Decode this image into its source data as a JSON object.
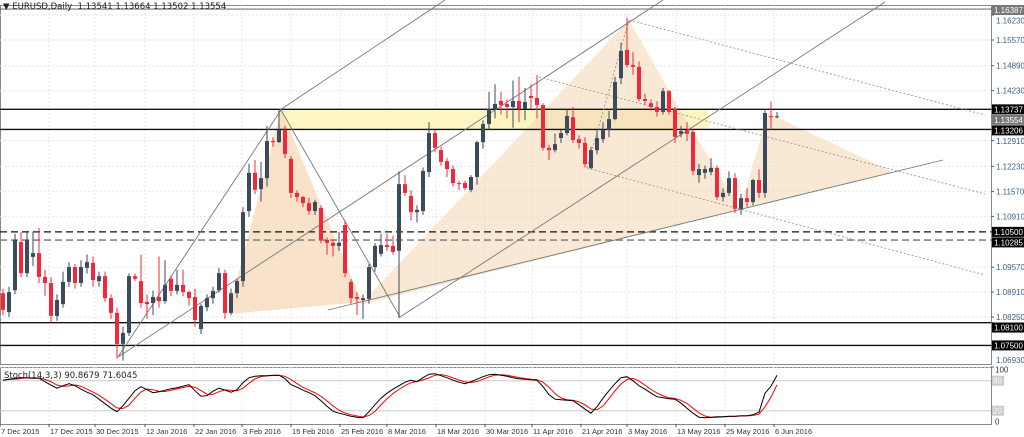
{
  "header": {
    "symbol": "EURUSD,Daily",
    "ohlc": "1.13541 1.13664 1.13502 1.13554",
    "menu_icon": "triangle-down-icon"
  },
  "stochastic": {
    "label": "Stoch(14,3,3) 90.8679 71.6045",
    "levels": [
      100,
      80,
      20,
      0
    ],
    "colors": {
      "main": "#000000",
      "signal": "#ff0000"
    },
    "main": [
      81,
      83,
      85,
      86,
      86,
      85,
      85,
      78,
      71,
      65,
      70,
      74,
      70,
      63,
      57,
      52,
      43,
      34,
      25,
      18,
      30,
      45,
      60,
      68,
      62,
      56,
      58,
      61,
      64,
      66,
      69,
      72,
      60,
      49,
      50,
      59,
      65,
      61,
      57,
      62,
      76,
      86,
      89,
      90,
      90,
      91,
      91,
      84,
      72,
      67,
      61,
      56,
      50,
      40,
      29,
      19,
      15,
      12,
      9,
      7,
      6,
      18,
      32,
      45,
      55,
      63,
      70,
      77,
      81,
      78,
      86,
      93,
      94,
      90,
      86,
      81,
      77,
      74,
      78,
      83,
      88,
      92,
      93,
      91,
      89,
      86,
      84,
      83,
      82,
      81,
      68,
      52,
      43,
      42,
      41,
      40,
      32,
      23,
      15,
      28,
      45,
      60,
      74,
      86,
      88,
      80,
      70,
      63,
      55,
      48,
      46,
      44,
      43,
      35,
      25,
      15,
      7,
      6,
      7,
      8,
      8,
      9,
      9,
      10,
      10,
      12,
      17,
      55,
      69,
      90.87
    ]
  },
  "chart_data": {
    "type": "candlestick",
    "symbol": "EURUSD",
    "timeframe": "Daily",
    "colors": {
      "bull": "#3d4a5c",
      "bear": "#f0293a",
      "zone": "#fdf6c3",
      "pattern": "#f5d9b8"
    },
    "ylim": [
      1.066,
      1.166
    ],
    "price_ticks": [
      "1.16230",
      "1.15570",
      "1.14890",
      "1.14230",
      "1.12910",
      "1.12230",
      "1.11570",
      "1.10910",
      "1.09570",
      "1.08910",
      "1.08250",
      "1.06930"
    ],
    "price_labels": [
      {
        "value": "1.16387",
        "style": "gray"
      },
      {
        "value": "1.13737",
        "style": "black"
      },
      {
        "value": "1.13554",
        "style": "gray"
      },
      {
        "value": "1.13206",
        "style": "black"
      },
      {
        "value": "1.10500",
        "style": "black"
      },
      {
        "value": "1.10285",
        "style": "black"
      },
      {
        "value": "1.08100",
        "style": "black"
      },
      {
        "value": "1.07500",
        "style": "black"
      }
    ],
    "levels": [
      {
        "price": 1.16387,
        "style": "solid-gray"
      },
      {
        "price": 1.13737,
        "style": "solid"
      },
      {
        "price": 1.13206,
        "style": "solid"
      },
      {
        "price": 1.105,
        "style": "dash-black"
      },
      {
        "price": 1.10285,
        "style": "dash-gray"
      },
      {
        "price": 1.081,
        "style": "solid"
      },
      {
        "price": 1.075,
        "style": "solid"
      }
    ],
    "date_labels": [
      "7 Dec 2015",
      "17 Dec 2015",
      "30 Dec 2015",
      "12 Jan 2016",
      "22 Jan 2016",
      "3 Feb 2016",
      "15 Feb 2016",
      "25 Feb 2016",
      "8 Mar 2016",
      "18 Mar 2016",
      "30 Mar 2016",
      "11 Apr 2016",
      "21 Apr 2016",
      "3 May 2016",
      "13 May 2016",
      "25 May 2016",
      "6 Jun 2016"
    ],
    "ohlc": [
      [
        1.0888,
        1.09,
        1.083,
        1.0844
      ],
      [
        1.0838,
        1.0905,
        1.0825,
        1.0891
      ],
      [
        1.0896,
        1.1045,
        1.0885,
        1.1029
      ],
      [
        1.1023,
        1.105,
        1.093,
        1.0941
      ],
      [
        1.0941,
        1.105,
        1.093,
        1.1029
      ],
      [
        1.0984,
        1.105,
        1.096,
        1.0994
      ],
      [
        1.0994,
        1.106,
        1.0915,
        1.0931
      ],
      [
        1.0931,
        1.095,
        1.088,
        1.0915
      ],
      [
        1.0915,
        1.093,
        1.081,
        1.0828
      ],
      [
        1.0828,
        1.0885,
        1.0815,
        1.087
      ],
      [
        1.0859,
        1.0945,
        1.085,
        1.0918
      ],
      [
        1.0918,
        1.097,
        1.0905,
        1.0957
      ],
      [
        1.0957,
        1.0965,
        1.09,
        1.0915
      ],
      [
        1.0915,
        1.0975,
        1.0905,
        1.0957
      ],
      [
        1.0955,
        1.099,
        1.094,
        1.097
      ],
      [
        1.0968,
        1.0985,
        1.0905,
        1.0923
      ],
      [
        1.092,
        1.0945,
        1.0905,
        1.0933
      ],
      [
        1.0933,
        1.0945,
        1.0865,
        1.0875
      ],
      [
        1.0875,
        1.0885,
        1.082,
        1.0836
      ],
      [
        1.0836,
        1.085,
        1.0715,
        1.0754
      ],
      [
        1.0754,
        1.08,
        1.071,
        1.0783
      ],
      [
        1.0783,
        1.094,
        1.0775,
        1.0933
      ],
      [
        1.0933,
        1.094,
        1.092,
        1.0926
      ],
      [
        1.092,
        1.099,
        1.085,
        1.0862
      ],
      [
        1.0865,
        1.0885,
        1.082,
        1.0859
      ],
      [
        1.0862,
        1.0895,
        1.083,
        1.0878
      ],
      [
        1.0878,
        1.0985,
        1.085,
        1.0867
      ],
      [
        1.0867,
        1.0975,
        1.086,
        1.091
      ],
      [
        1.0926,
        1.0935,
        1.088,
        1.0894
      ],
      [
        1.0894,
        1.095,
        1.0885,
        1.091
      ],
      [
        1.091,
        1.095,
        1.088,
        1.0891
      ],
      [
        1.0891,
        1.0895,
        1.0855,
        1.0875
      ],
      [
        1.0878,
        1.09,
        1.08,
        1.0817
      ],
      [
        1.0793,
        1.086,
        1.078,
        1.0854
      ],
      [
        1.0851,
        1.0885,
        1.084,
        1.0875
      ],
      [
        1.0875,
        1.0905,
        1.086,
        1.0894
      ],
      [
        1.0896,
        1.0955,
        1.089,
        1.0941
      ],
      [
        1.0941,
        1.095,
        1.082,
        1.0836
      ],
      [
        1.0836,
        1.09,
        1.083,
        1.0888
      ],
      [
        1.0888,
        1.0925,
        1.0875,
        1.092
      ],
      [
        1.092,
        1.1115,
        1.0905,
        1.1102
      ],
      [
        1.1105,
        1.123,
        1.109,
        1.1206
      ],
      [
        1.1206,
        1.124,
        1.115,
        1.1161
      ],
      [
        1.1163,
        1.1235,
        1.113,
        1.1192
      ],
      [
        1.1192,
        1.133,
        1.117,
        1.129
      ],
      [
        1.129,
        1.13,
        1.1275,
        1.1287
      ],
      [
        1.1287,
        1.1376,
        1.1285,
        1.1319
      ],
      [
        1.1319,
        1.133,
        1.1245,
        1.1256
      ],
      [
        1.1243,
        1.125,
        1.114,
        1.1153
      ],
      [
        1.1153,
        1.116,
        1.113,
        1.1142
      ],
      [
        1.1142,
        1.1145,
        1.1115,
        1.1126
      ],
      [
        1.1126,
        1.114,
        1.1095,
        1.1105
      ],
      [
        1.1105,
        1.1135,
        1.1095,
        1.1129
      ],
      [
        1.1113,
        1.112,
        1.102,
        1.1029
      ],
      [
        1.1029,
        1.1035,
        1.099,
        1.1021
      ],
      [
        1.1021,
        1.103,
        1.0985,
        1.1013
      ],
      [
        1.1013,
        1.105,
        1.1,
        1.1021
      ],
      [
        1.1068,
        1.108,
        1.093,
        1.0941
      ],
      [
        1.0918,
        1.0925,
        1.086,
        1.0875
      ],
      [
        1.0878,
        1.089,
        1.083,
        1.0873
      ],
      [
        1.087,
        1.0885,
        1.082,
        1.0875
      ],
      [
        1.0873,
        1.0965,
        1.086,
        1.0957
      ],
      [
        1.0957,
        1.102,
        1.0945,
        1.1013
      ],
      [
        1.0992,
        1.1045,
        1.0985,
        1.1015
      ],
      [
        1.1015,
        1.1045,
        1.1,
        1.101
      ],
      [
        1.1013,
        1.104,
        1.099,
        1.0997
      ],
      [
        1.1,
        1.121,
        1.0822,
        1.1176
      ],
      [
        1.1176,
        1.12,
        1.1145,
        1.1153
      ],
      [
        1.1145,
        1.116,
        1.108,
        1.1102
      ],
      [
        1.1102,
        1.112,
        1.1075,
        1.1108
      ],
      [
        1.1105,
        1.122,
        1.1095,
        1.1211
      ],
      [
        1.1208,
        1.134,
        1.1195,
        1.1311
      ],
      [
        1.1311,
        1.132,
        1.126,
        1.1272
      ],
      [
        1.1266,
        1.1275,
        1.1225,
        1.1235
      ],
      [
        1.1237,
        1.1245,
        1.1195,
        1.1216
      ],
      [
        1.1216,
        1.1225,
        1.117,
        1.1179
      ],
      [
        1.1179,
        1.1185,
        1.116,
        1.1176
      ],
      [
        1.1179,
        1.1185,
        1.116,
        1.1166
      ],
      [
        1.1161,
        1.12,
        1.1155,
        1.1195
      ],
      [
        1.1195,
        1.129,
        1.1175,
        1.1287
      ],
      [
        1.1287,
        1.1345,
        1.127,
        1.1335
      ],
      [
        1.1335,
        1.142,
        1.132,
        1.1375
      ],
      [
        1.1375,
        1.144,
        1.135,
        1.1388
      ],
      [
        1.1396,
        1.142,
        1.136,
        1.1385
      ],
      [
        1.1388,
        1.14,
        1.135,
        1.138
      ],
      [
        1.138,
        1.145,
        1.1325,
        1.1396
      ],
      [
        1.1396,
        1.146,
        1.134,
        1.1375
      ],
      [
        1.1375,
        1.143,
        1.1345,
        1.1393
      ],
      [
        1.1409,
        1.144,
        1.1375,
        1.1404
      ],
      [
        1.1404,
        1.1464,
        1.135,
        1.1385
      ],
      [
        1.1385,
        1.139,
        1.1265,
        1.1272
      ],
      [
        1.1272,
        1.128,
        1.124,
        1.1266
      ],
      [
        1.1266,
        1.131,
        1.126,
        1.1282
      ],
      [
        1.1298,
        1.132,
        1.1285,
        1.1311
      ],
      [
        1.1311,
        1.1375,
        1.1305,
        1.1356
      ],
      [
        1.1353,
        1.138,
        1.1285,
        1.1293
      ],
      [
        1.1295,
        1.1305,
        1.127,
        1.1285
      ],
      [
        1.1285,
        1.13,
        1.122,
        1.1229
      ],
      [
        1.1219,
        1.1275,
        1.1215,
        1.1266
      ],
      [
        1.1266,
        1.132,
        1.1255,
        1.1298
      ],
      [
        1.1295,
        1.134,
        1.1285,
        1.1319
      ],
      [
        1.1319,
        1.137,
        1.13,
        1.1348
      ],
      [
        1.1348,
        1.146,
        1.1345,
        1.1446
      ],
      [
        1.1456,
        1.155,
        1.144,
        1.1528
      ],
      [
        1.1531,
        1.1616,
        1.1485,
        1.1491
      ],
      [
        1.1491,
        1.1525,
        1.1465,
        1.1486
      ],
      [
        1.1486,
        1.15,
        1.1395,
        1.1401
      ],
      [
        1.1401,
        1.1415,
        1.1385,
        1.1396
      ],
      [
        1.139,
        1.14,
        1.137,
        1.138
      ],
      [
        1.138,
        1.1395,
        1.1355,
        1.1367
      ],
      [
        1.1367,
        1.143,
        1.136,
        1.1422
      ],
      [
        1.1422,
        1.1425,
        1.136,
        1.1367
      ],
      [
        1.1375,
        1.138,
        1.1285,
        1.1301
      ],
      [
        1.1309,
        1.133,
        1.13,
        1.1316
      ],
      [
        1.1319,
        1.134,
        1.129,
        1.1309
      ],
      [
        1.1314,
        1.132,
        1.12,
        1.1211
      ],
      [
        1.12,
        1.123,
        1.118,
        1.1216
      ],
      [
        1.1206,
        1.1225,
        1.119,
        1.1216
      ],
      [
        1.1208,
        1.1245,
        1.12,
        1.1219
      ],
      [
        1.1219,
        1.1225,
        1.1135,
        1.1142
      ],
      [
        1.1142,
        1.1165,
        1.113,
        1.1153
      ],
      [
        1.1153,
        1.121,
        1.1145,
        1.1192
      ],
      [
        1.1192,
        1.1205,
        1.11,
        1.1111
      ],
      [
        1.1111,
        1.115,
        1.1095,
        1.1139
      ],
      [
        1.1139,
        1.1165,
        1.1115,
        1.1129
      ],
      [
        1.1129,
        1.119,
        1.112,
        1.1187
      ],
      [
        1.1187,
        1.1215,
        1.114,
        1.1153
      ],
      [
        1.1153,
        1.1375,
        1.114,
        1.1364
      ],
      [
        1.1356,
        1.1394,
        1.132,
        1.1353
      ],
      [
        1.13541,
        1.13664,
        1.13502,
        1.13554
      ]
    ]
  }
}
